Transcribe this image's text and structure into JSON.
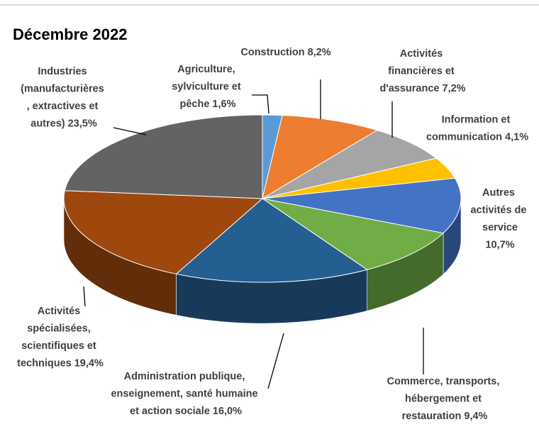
{
  "chart_data": {
    "type": "pie3d",
    "title": "Décembre 2022",
    "categories": [
      "Agriculture, sylviculture et pêche",
      "Construction",
      "Activités financières et d'assurance",
      "Information et communication",
      "Autres activités de service",
      "Commerce, transports, hébergement et restauration",
      "Administration publique, enseignement, santé humaine et action sociale",
      "Activités spécialisées, scientifiques et techniques",
      "Industries (manufacturières , extractives et autres)"
    ],
    "values": [
      1.6,
      8.2,
      7.2,
      4.1,
      10.7,
      9.4,
      16.0,
      19.4,
      23.5
    ],
    "value_labels": [
      "1,6%",
      "8,2%",
      "7,2%",
      "4,1%",
      "10,7%",
      "9,4%",
      "16,0%",
      "19,4%",
      "23,5%"
    ],
    "colors": [
      "#5b9bd5",
      "#ed7d31",
      "#a5a5a5",
      "#ffc000",
      "#4472c4",
      "#70ad47",
      "#255e91",
      "#9e480e",
      "#636363"
    ]
  }
}
